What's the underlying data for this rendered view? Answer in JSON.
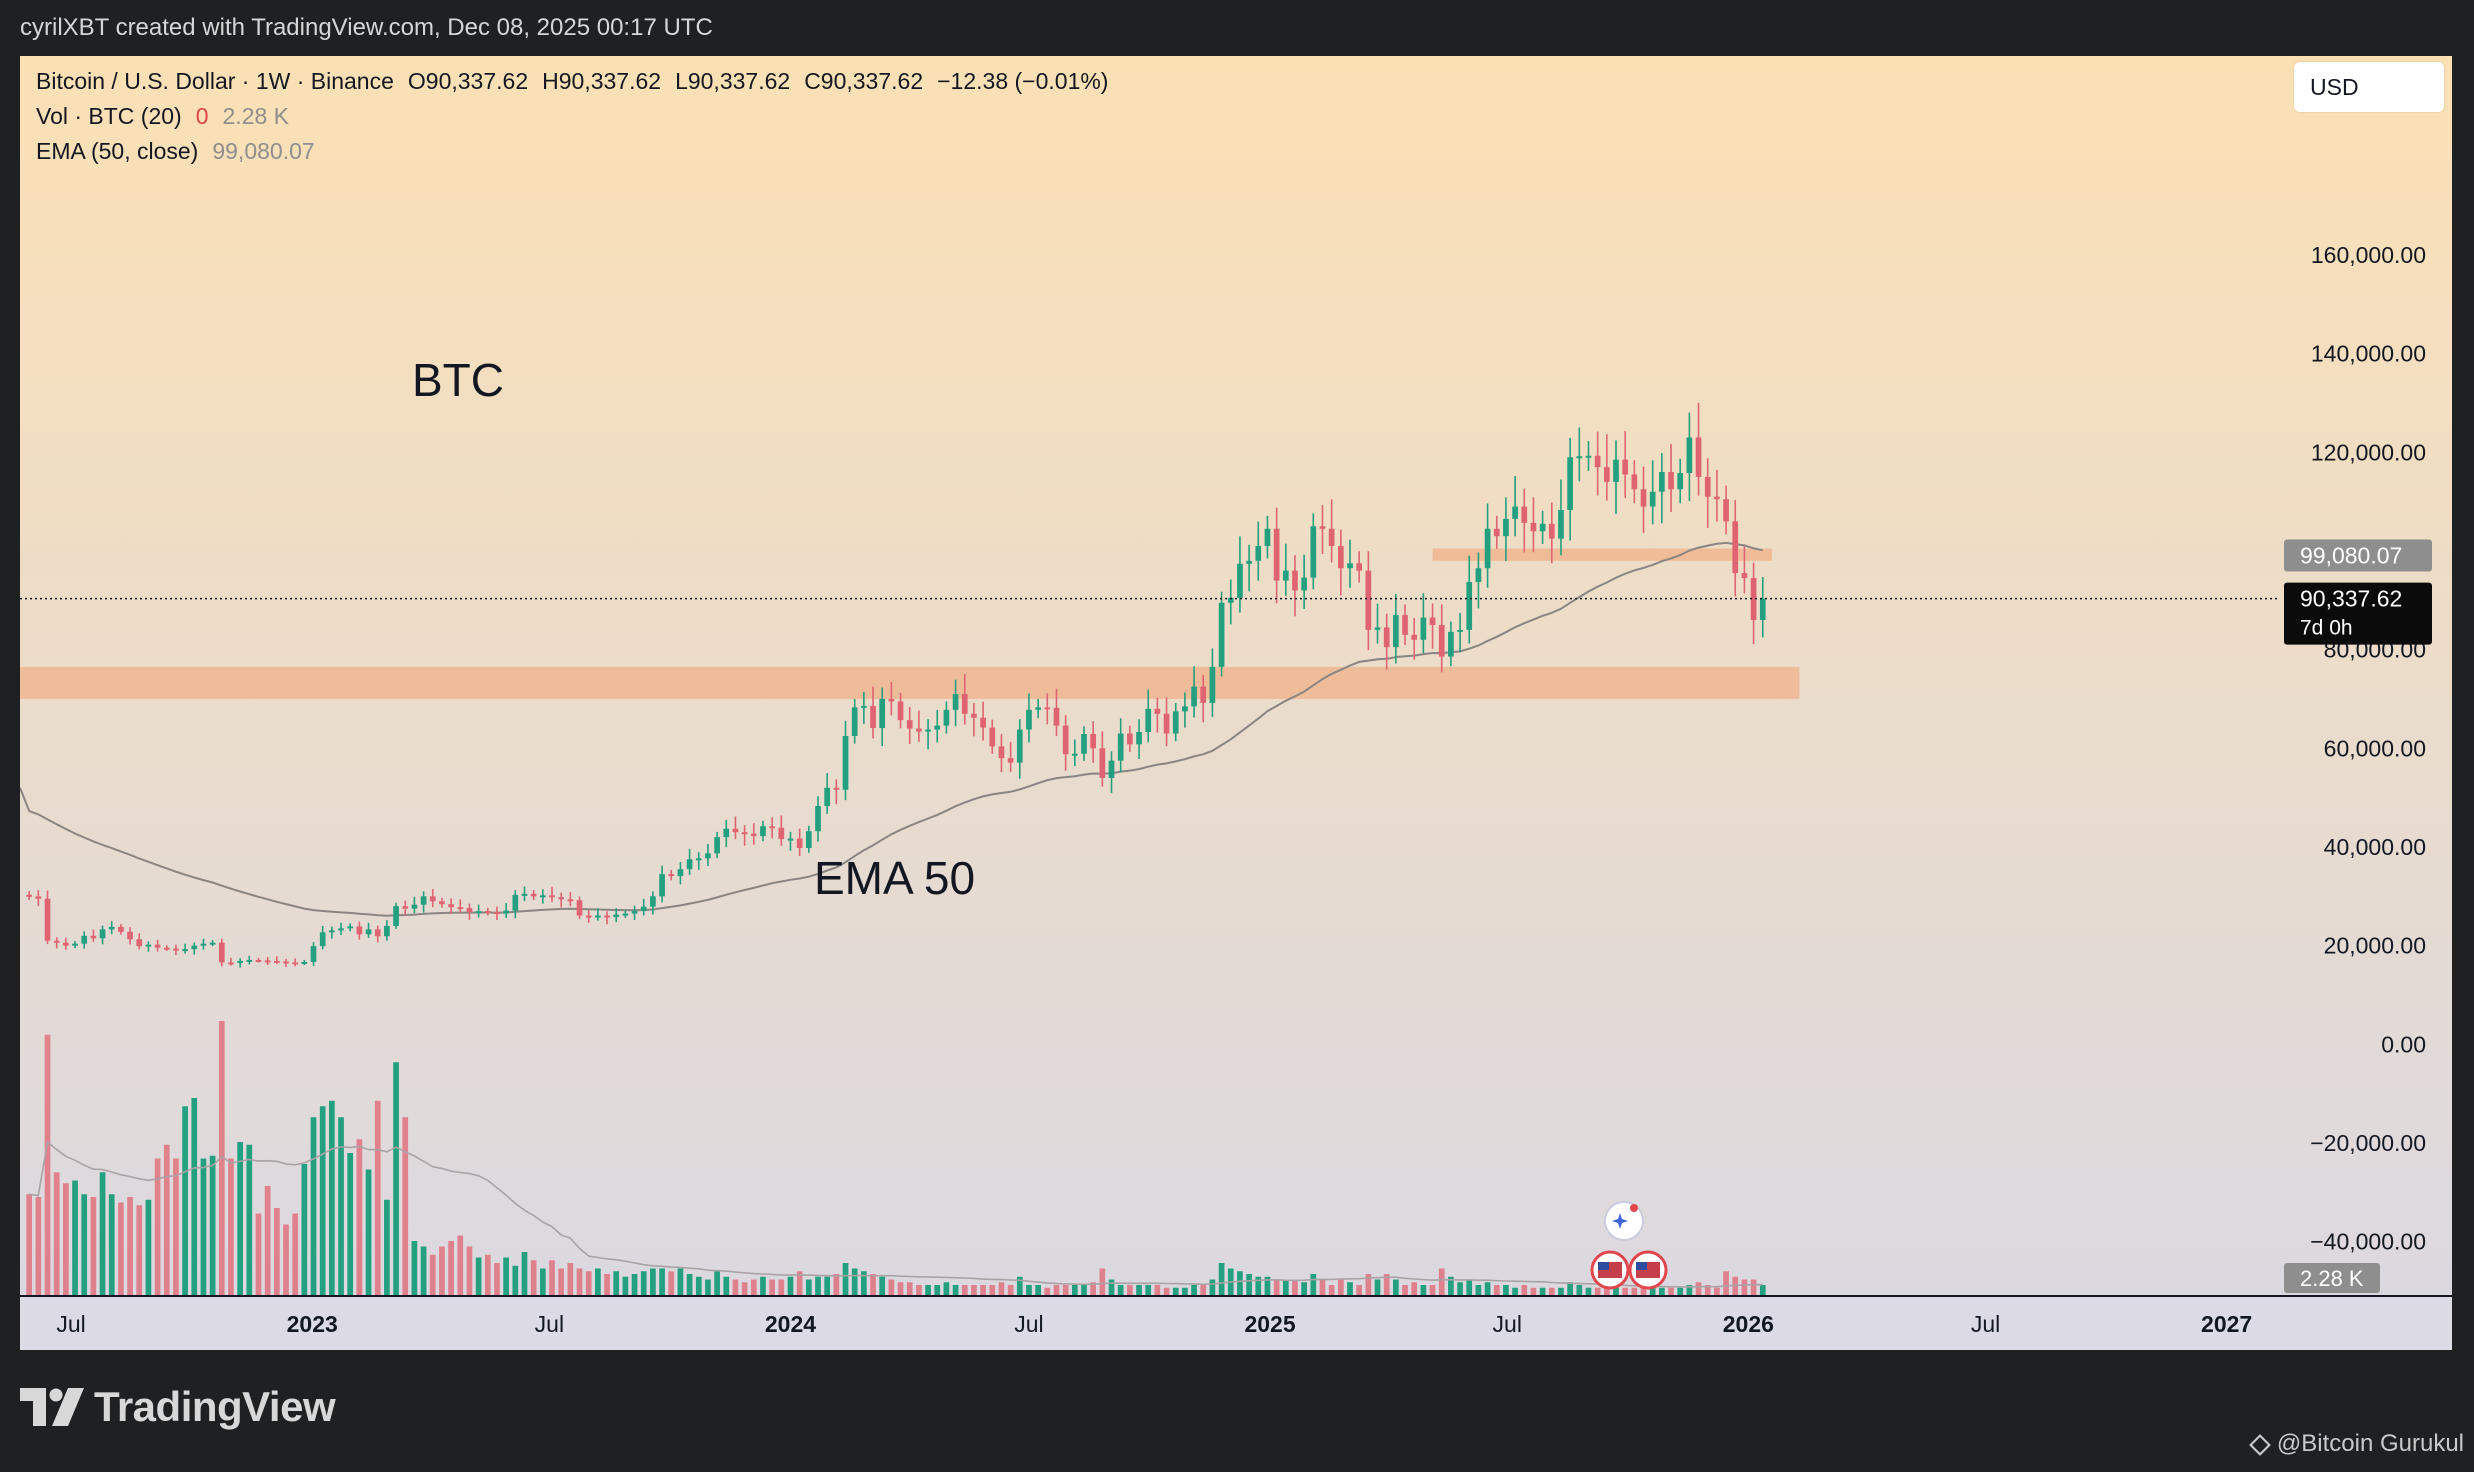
{
  "header": {
    "caption": "cyrilXBT created with TradingView.com, Dec 08, 2025 00:17 UTC"
  },
  "legend": {
    "symbol": "Bitcoin / U.S. Dollar · 1W · Binance",
    "open": "O90,337.62",
    "high": "H90,337.62",
    "low": "L90,337.62",
    "close": "C90,337.62",
    "change": "−12.38 (−0.01%)",
    "vol_label": "Vol · BTC (20)",
    "vol_zero": "0",
    "vol_value": "2.28 K",
    "ema_label": "EMA (50, close)",
    "ema_value": "99,080.07"
  },
  "currency": "USD",
  "annotations": {
    "btc": "BTC",
    "ema": "EMA 50"
  },
  "footer": {
    "brand": "TradingView",
    "watermark": "@Bitcoin Gurukul"
  },
  "colors": {
    "up": "#22a07f",
    "down": "#e06371",
    "zone": "#f0b48c",
    "bg_top": "#fbe0b4",
    "bg_bottom": "#dad8e2"
  },
  "chart_data": {
    "type": "candlestick",
    "title": "Bitcoin / U.S. Dollar · 1W · Binance",
    "ylim": [
      -50000,
      176000
    ],
    "y_ticks": [
      160000,
      140000,
      120000,
      100000,
      80000,
      60000,
      40000,
      20000,
      0,
      -20000,
      -40000
    ],
    "y_tick_labels": [
      "160,000.00",
      "140,000.00",
      "120,000.00",
      "",
      "80,000.00",
      "60,000.00",
      "40,000.00",
      "20,000.00",
      "0.00",
      "−20,000.00",
      "−40,000.00"
    ],
    "x_ticks": [
      {
        "label": "Jul",
        "date": "2022-07-01",
        "bold": false
      },
      {
        "label": "2023",
        "date": "2023-01-01",
        "bold": true
      },
      {
        "label": "Jul",
        "date": "2023-07-01",
        "bold": false
      },
      {
        "label": "2024",
        "date": "2024-01-01",
        "bold": true
      },
      {
        "label": "Jul",
        "date": "2024-07-01",
        "bold": false
      },
      {
        "label": "2025",
        "date": "2025-01-01",
        "bold": true
      },
      {
        "label": "Jul",
        "date": "2025-07-01",
        "bold": false
      },
      {
        "label": "2026",
        "date": "2026-01-01",
        "bold": true
      },
      {
        "label": "Jul",
        "date": "2026-07-01",
        "bold": false
      },
      {
        "label": "2027",
        "date": "2027-01-01",
        "bold": true
      }
    ],
    "x_range": [
      "2022-05-23",
      "2027-06-22"
    ],
    "price": {
      "start": "2022-05-30",
      "close": [
        30000,
        29500,
        21000,
        20600,
        20000,
        20400,
        22000,
        21500,
        23300,
        23800,
        22800,
        21300,
        19900,
        20200,
        19600,
        19400,
        19000,
        19300,
        20000,
        20400,
        20600,
        16600,
        16500,
        16900,
        17100,
        17000,
        16900,
        16800,
        16600,
        16500,
        16700,
        19900,
        22700,
        23100,
        23500,
        23900,
        22300,
        23300,
        21900,
        24000,
        28000,
        27500,
        28300,
        30000,
        29000,
        28400,
        27800,
        27600,
        26800,
        27000,
        26800,
        26500,
        27100,
        30300,
        30500,
        30000,
        30200,
        29800,
        29400,
        29200,
        26100,
        25900,
        26100,
        25800,
        26300,
        26500,
        27000,
        27900,
        30000,
        34500,
        34100,
        35500,
        37500,
        37700,
        38700,
        42000,
        43700,
        43000,
        42700,
        42200,
        44200,
        43900,
        41600,
        41700,
        39800,
        43200,
        48300,
        52000,
        51600,
        62500,
        68300,
        68600,
        64100,
        70000,
        69500,
        65700,
        64000,
        63400,
        63800,
        64600,
        67800,
        71000,
        67000,
        66200,
        64200,
        60400,
        58000,
        57100,
        63800,
        67800,
        68300,
        68200,
        64600,
        58800,
        58900,
        62900,
        60000,
        54000,
        57500,
        63000,
        60800,
        63300,
        68000,
        67000,
        63000,
        67500,
        68500,
        72500,
        69200,
        76500,
        89500,
        90500,
        97400,
        98000,
        101000,
        104500,
        94000,
        96000,
        92000,
        94600,
        105000,
        104500,
        101000,
        96500,
        97500,
        96000,
        84000,
        84500,
        80500,
        87000,
        83000,
        82000,
        86500,
        85000,
        78600,
        83600,
        84000,
        93700,
        96500,
        104500,
        103000,
        106500,
        109000,
        105700,
        104000,
        105500,
        102500,
        108300,
        119000,
        119200,
        119300,
        117000,
        114000,
        118500,
        115500,
        112500,
        109000,
        112000,
        116000,
        112500,
        115800,
        123000,
        115000,
        111000,
        110500,
        106000,
        95500,
        94500,
        86000,
        90300
      ]
    },
    "volume": {
      "label": "Vol · BTC (20)",
      "last": "2.28 K",
      "start": "2022-05-30",
      "relative_heights": [
        0.37,
        0.36,
        0.95,
        0.45,
        0.41,
        0.42,
        0.37,
        0.36,
        0.45,
        0.37,
        0.34,
        0.36,
        0.33,
        0.35,
        0.5,
        0.55,
        0.5,
        0.69,
        0.72,
        0.5,
        0.51,
        1.0,
        0.5,
        0.56,
        0.55,
        0.3,
        0.4,
        0.32,
        0.26,
        0.3,
        0.48,
        0.65,
        0.69,
        0.71,
        0.65,
        0.52,
        0.57,
        0.46,
        0.71,
        0.35,
        0.85,
        0.65,
        0.2,
        0.18,
        0.15,
        0.18,
        0.2,
        0.22,
        0.18,
        0.14,
        0.15,
        0.12,
        0.14,
        0.11,
        0.16,
        0.13,
        0.1,
        0.13,
        0.1,
        0.12,
        0.1,
        0.09,
        0.1,
        0.08,
        0.09,
        0.07,
        0.08,
        0.09,
        0.1,
        0.1,
        0.09,
        0.1,
        0.08,
        0.07,
        0.06,
        0.09,
        0.07,
        0.06,
        0.05,
        0.06,
        0.07,
        0.06,
        0.06,
        0.07,
        0.09,
        0.06,
        0.07,
        0.07,
        0.08,
        0.12,
        0.1,
        0.09,
        0.08,
        0.07,
        0.06,
        0.05,
        0.05,
        0.04,
        0.04,
        0.04,
        0.05,
        0.04,
        0.04,
        0.04,
        0.04,
        0.04,
        0.05,
        0.04,
        0.07,
        0.04,
        0.04,
        0.03,
        0.04,
        0.04,
        0.04,
        0.04,
        0.05,
        0.1,
        0.06,
        0.04,
        0.04,
        0.04,
        0.04,
        0.04,
        0.03,
        0.03,
        0.03,
        0.04,
        0.04,
        0.06,
        0.12,
        0.1,
        0.09,
        0.08,
        0.07,
        0.07,
        0.06,
        0.06,
        0.06,
        0.05,
        0.08,
        0.06,
        0.04,
        0.06,
        0.05,
        0.04,
        0.08,
        0.06,
        0.08,
        0.06,
        0.04,
        0.05,
        0.04,
        0.04,
        0.1,
        0.07,
        0.05,
        0.06,
        0.04,
        0.05,
        0.04,
        0.04,
        0.03,
        0.04,
        0.03,
        0.03,
        0.03,
        0.03,
        0.05,
        0.04,
        0.03,
        0.03,
        0.03,
        0.03,
        0.03,
        0.03,
        0.04,
        0.03,
        0.03,
        0.03,
        0.03,
        0.04,
        0.05,
        0.04,
        0.03,
        0.09,
        0.07,
        0.06,
        0.06,
        0.04
      ]
    },
    "ema50": {
      "last": 99080.07
    },
    "zones": [
      {
        "from": 70000,
        "to": 76500,
        "x_from": "2022-05-23",
        "x_to": "2026-02-09"
      },
      {
        "from": 98000,
        "to": 100500,
        "x_from": "2025-05-05",
        "x_to": "2026-01-19"
      }
    ],
    "price_line": {
      "value": 90337.62,
      "label": "90,337.62",
      "countdown": "7d 0h"
    },
    "ema_tag": "99,080.07",
    "volume_tag": "2.28 K"
  }
}
